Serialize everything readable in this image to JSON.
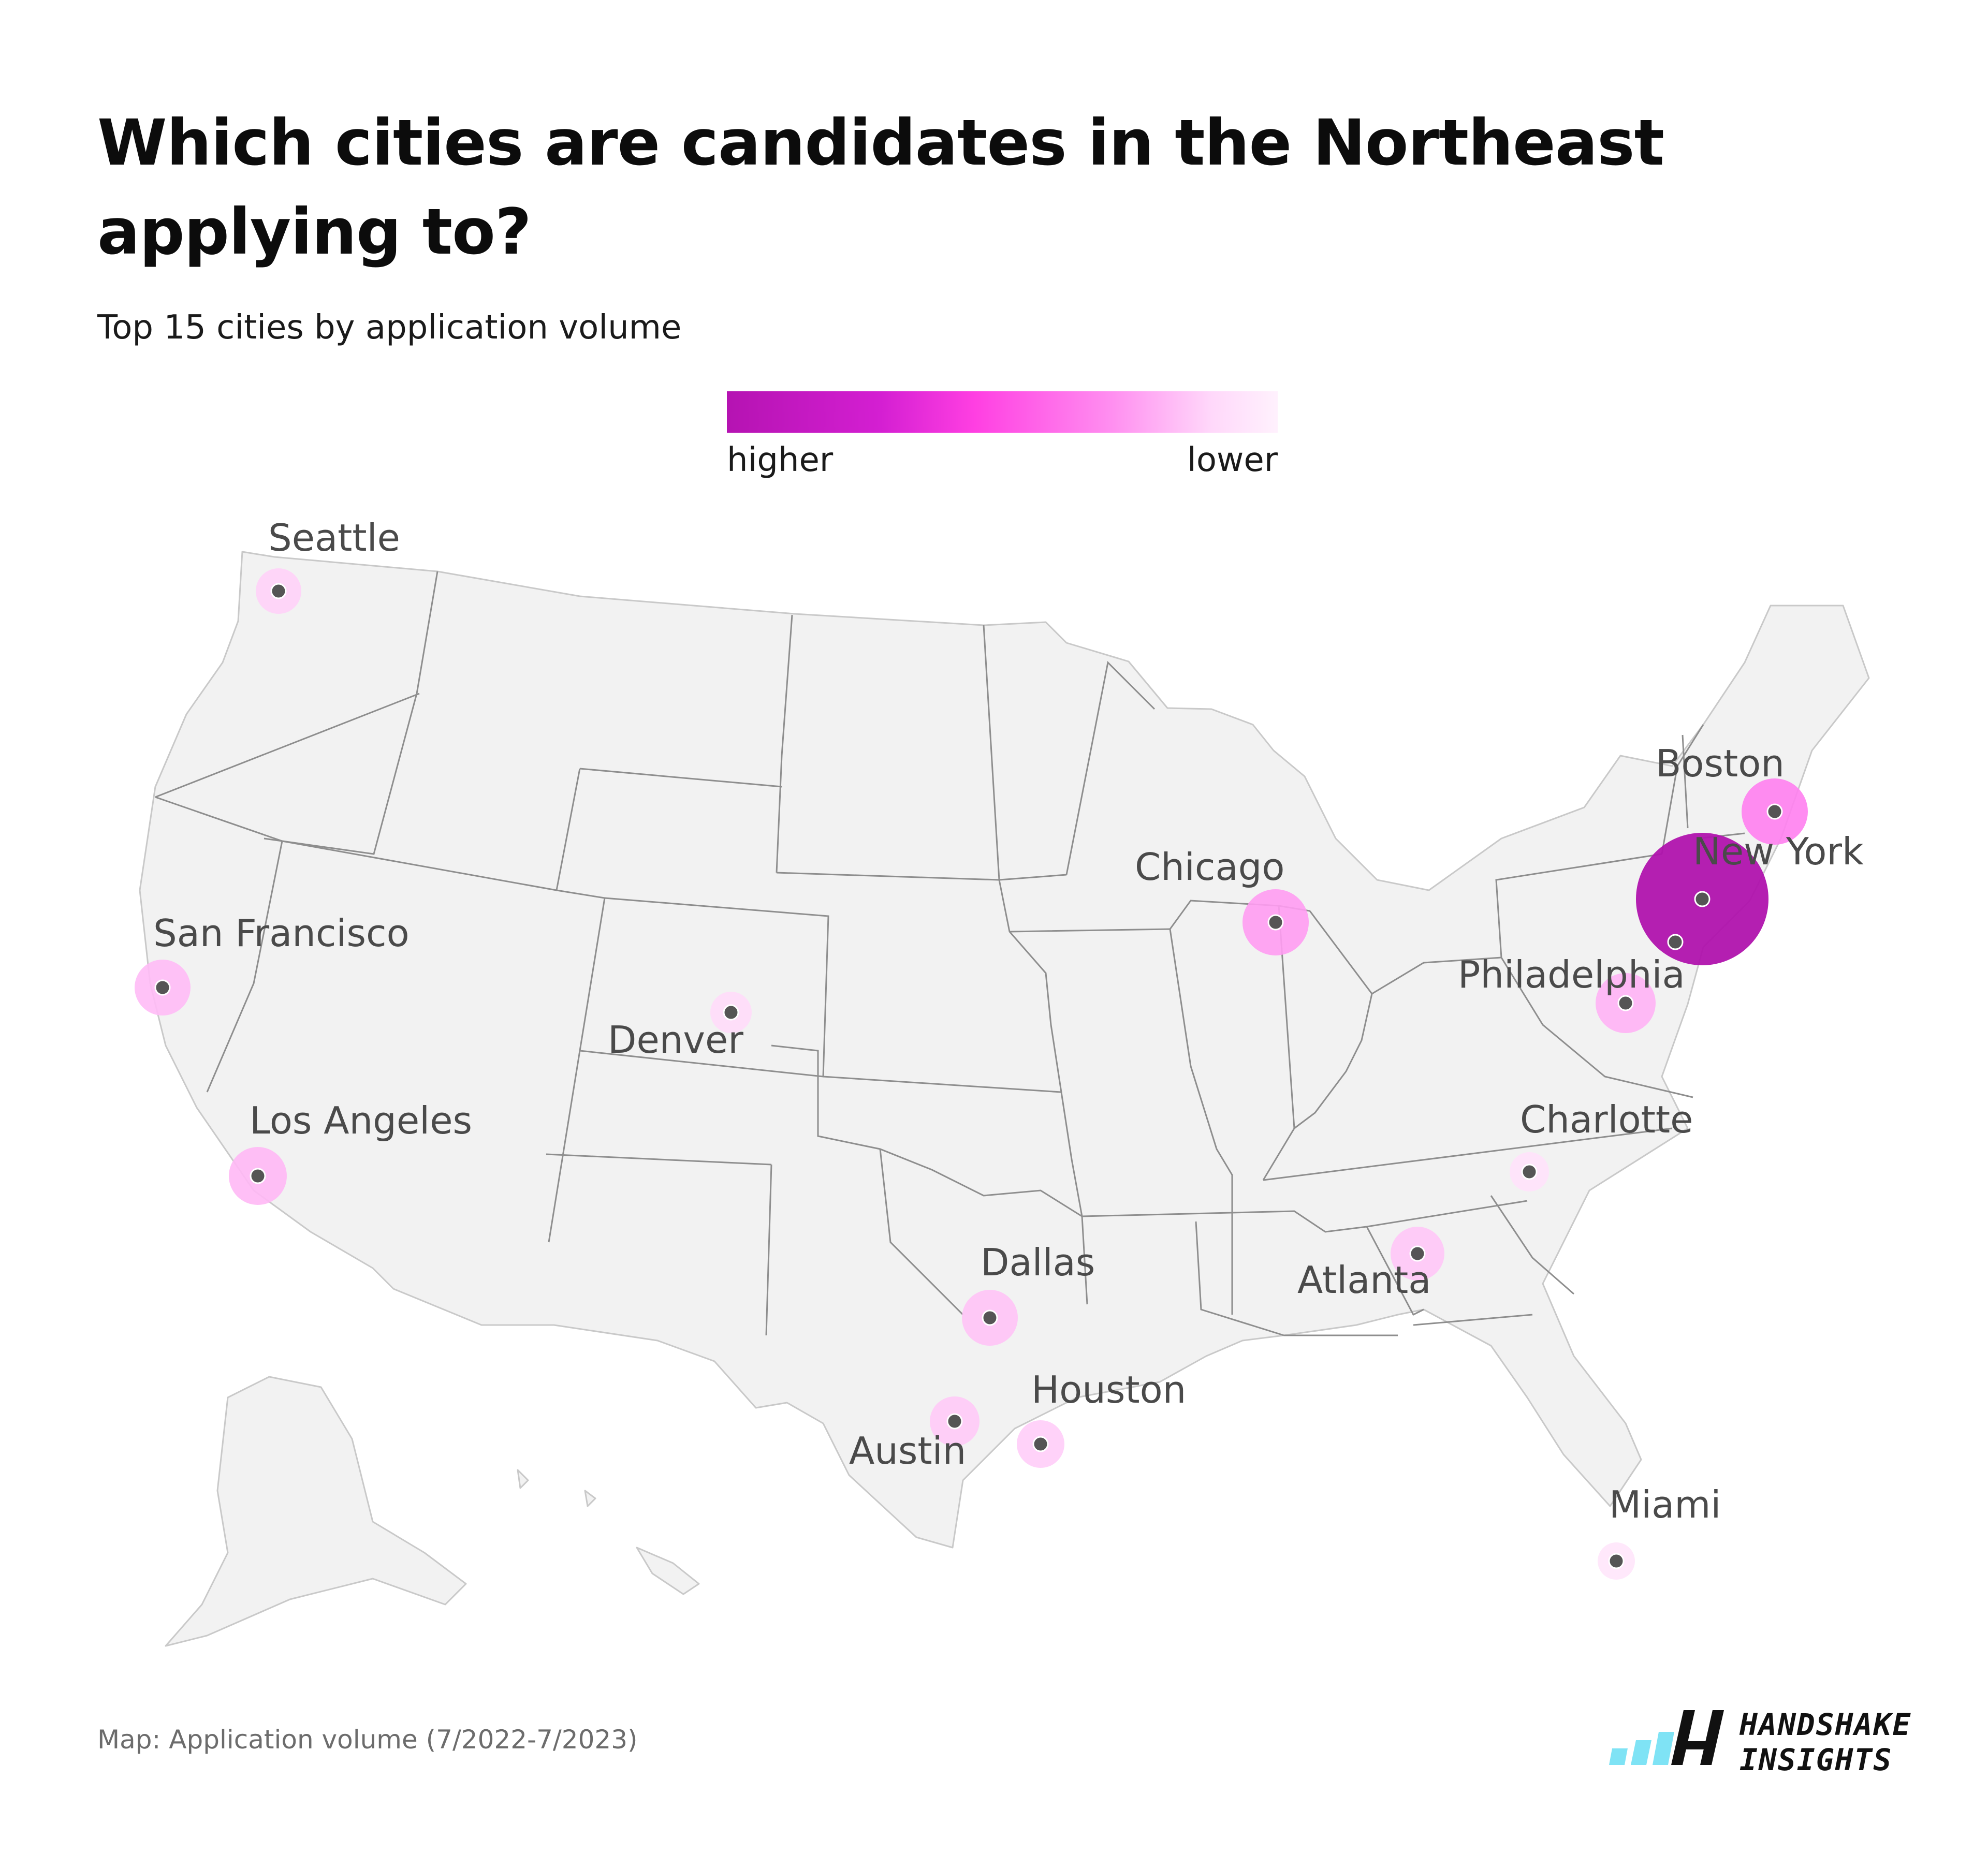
{
  "title": "Which cities are candidates in the Northeast applying to?",
  "subtitle": "Top 15 cities by application volume",
  "legend": {
    "high_label": "higher",
    "low_label": "lower",
    "colors": [
      "#b513b2",
      "#d41fd2",
      "#ff3fe2",
      "#ff8ff0",
      "#ffd8fa",
      "#fff1fd"
    ]
  },
  "map_style": {
    "land": "#f2f2f2",
    "border": "#8e8e8e",
    "dot": "#555555",
    "highest_bubble": "#b013ad"
  },
  "chart_data": {
    "type": "map",
    "region": "United States",
    "cities": [
      {
        "name": "New York",
        "rank": 1,
        "color": "#b013ad"
      },
      {
        "name": "Boston",
        "rank": 2,
        "color": "#ff7ff0"
      },
      {
        "name": "Philadelphia",
        "rank": 3,
        "color": "#ffb3f5"
      },
      {
        "name": "Chicago",
        "rank": 4,
        "color": "#ff9cf2"
      },
      {
        "name": "San Francisco",
        "rank": 5,
        "color": "#ffbbf6"
      },
      {
        "name": "Los Angeles",
        "rank": 6,
        "color": "#ffb8f5"
      },
      {
        "name": "Dallas",
        "rank": 7,
        "color": "#ffc3f6"
      },
      {
        "name": "Atlanta",
        "rank": 8,
        "color": "#ffc6f7"
      },
      {
        "name": "Austin",
        "rank": 9,
        "color": "#ffcaf7"
      },
      {
        "name": "Houston",
        "rank": 10,
        "color": "#ffcdf8"
      },
      {
        "name": "Seattle",
        "rank": 11,
        "color": "#ffd2f8"
      },
      {
        "name": "Denver",
        "rank": 12,
        "color": "#ffdcfa"
      },
      {
        "name": "Charlotte",
        "rank": 13,
        "color": "#ffe2fb"
      },
      {
        "name": "Miami",
        "rank": 14,
        "color": "#ffe6fb"
      },
      {
        "name": "",
        "rank": 15,
        "color": "#c21ec0"
      }
    ]
  },
  "footer": {
    "source": "Map: Application volume (7/2022-7/2023)"
  },
  "brand": {
    "line1": "HANDSHAKE",
    "line2": "INSIGHTS",
    "colors": [
      "#7fe3f5",
      "#111111"
    ]
  }
}
